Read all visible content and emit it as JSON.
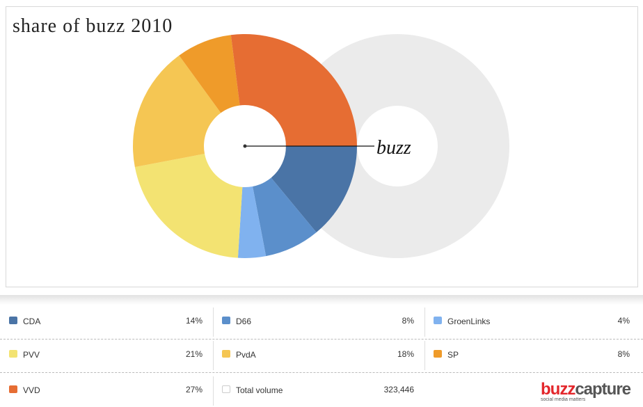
{
  "chart_data": {
    "type": "pie",
    "title": "share of buzz 2010",
    "center_label": "buzz",
    "slices": [
      {
        "name": "CDA",
        "value": 14,
        "label": "14%",
        "color": "#4a74a6"
      },
      {
        "name": "D66",
        "value": 8,
        "label": "8%",
        "color": "#5b8fcb"
      },
      {
        "name": "GroenLinks",
        "value": 4,
        "label": "4%",
        "color": "#80b2ef"
      },
      {
        "name": "PVV",
        "value": 21,
        "label": "21%",
        "color": "#f3e372"
      },
      {
        "name": "PvdA",
        "value": 18,
        "label": "18%",
        "color": "#f5c653"
      },
      {
        "name": "SP",
        "value": 8,
        "label": "8%",
        "color": "#ef9b2a"
      },
      {
        "name": "VVD",
        "value": 27,
        "label": "27%",
        "color": "#e66d33"
      }
    ],
    "total": {
      "name": "Total volume",
      "value": "323,446",
      "color": "#ebebeb"
    }
  },
  "logo": {
    "part1": "buzz",
    "part2": "capture",
    "tagline": "social media matters"
  }
}
